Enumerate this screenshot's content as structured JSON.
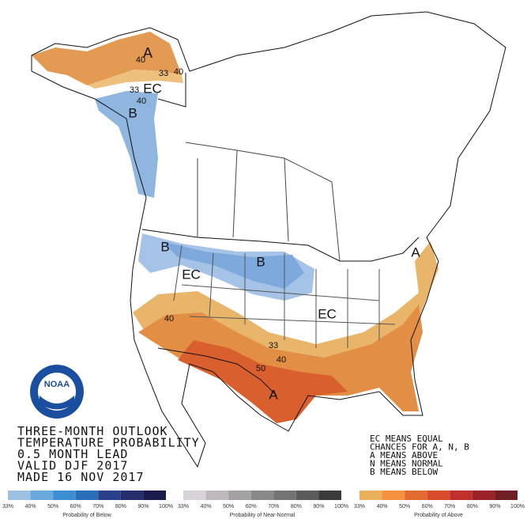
{
  "logo": "NOAA",
  "title_lines": [
    "THREE-MONTH OUTLOOK",
    "TEMPERATURE PROBABILITY",
    "0.5 MONTH LEAD",
    "VALID DJF 2017",
    "MADE 16 NOV 2017"
  ],
  "key_lines": [
    "EC MEANS EQUAL",
    "CHANCES FOR A, N, B",
    "A MEANS ABOVE",
    "N MEANS NORMAL",
    "B MEANS BELOW"
  ],
  "map_labels": [
    "A",
    "40",
    "33",
    "40",
    "EC",
    "33",
    "40",
    "B",
    "B",
    "B",
    "EC",
    "EC",
    "40",
    "33",
    "40",
    "50",
    "A",
    "A"
  ],
  "legends": [
    {
      "title": "Probability of Below",
      "ticks": [
        "33%",
        "40%",
        "50%",
        "60%",
        "70%",
        "80%",
        "90%",
        "100%"
      ],
      "colors": [
        "#9dc1e3",
        "#6aa8dc",
        "#3b8fd0",
        "#2a6db8",
        "#283f8a",
        "#272e6e",
        "#1c1b4e"
      ]
    },
    {
      "title": "Probability of Near-Normal",
      "ticks": [
        "33%",
        "40%",
        "50%",
        "60%",
        "70%",
        "80%",
        "90%",
        "100%"
      ],
      "colors": [
        "#d8d3d8",
        "#bdb9bd",
        "#a3a1a3",
        "#8a898a",
        "#737373",
        "#5a5a5a",
        "#3b3b3b"
      ]
    },
    {
      "title": "Probability of Above",
      "ticks": [
        "33%",
        "40%",
        "50%",
        "60%",
        "70%",
        "80%",
        "90%",
        "100%"
      ],
      "colors": [
        "#e9b15a",
        "#f5923f",
        "#e26b32",
        "#d84b2b",
        "#c0302a",
        "#9b2327",
        "#6e1f23"
      ]
    }
  ]
}
